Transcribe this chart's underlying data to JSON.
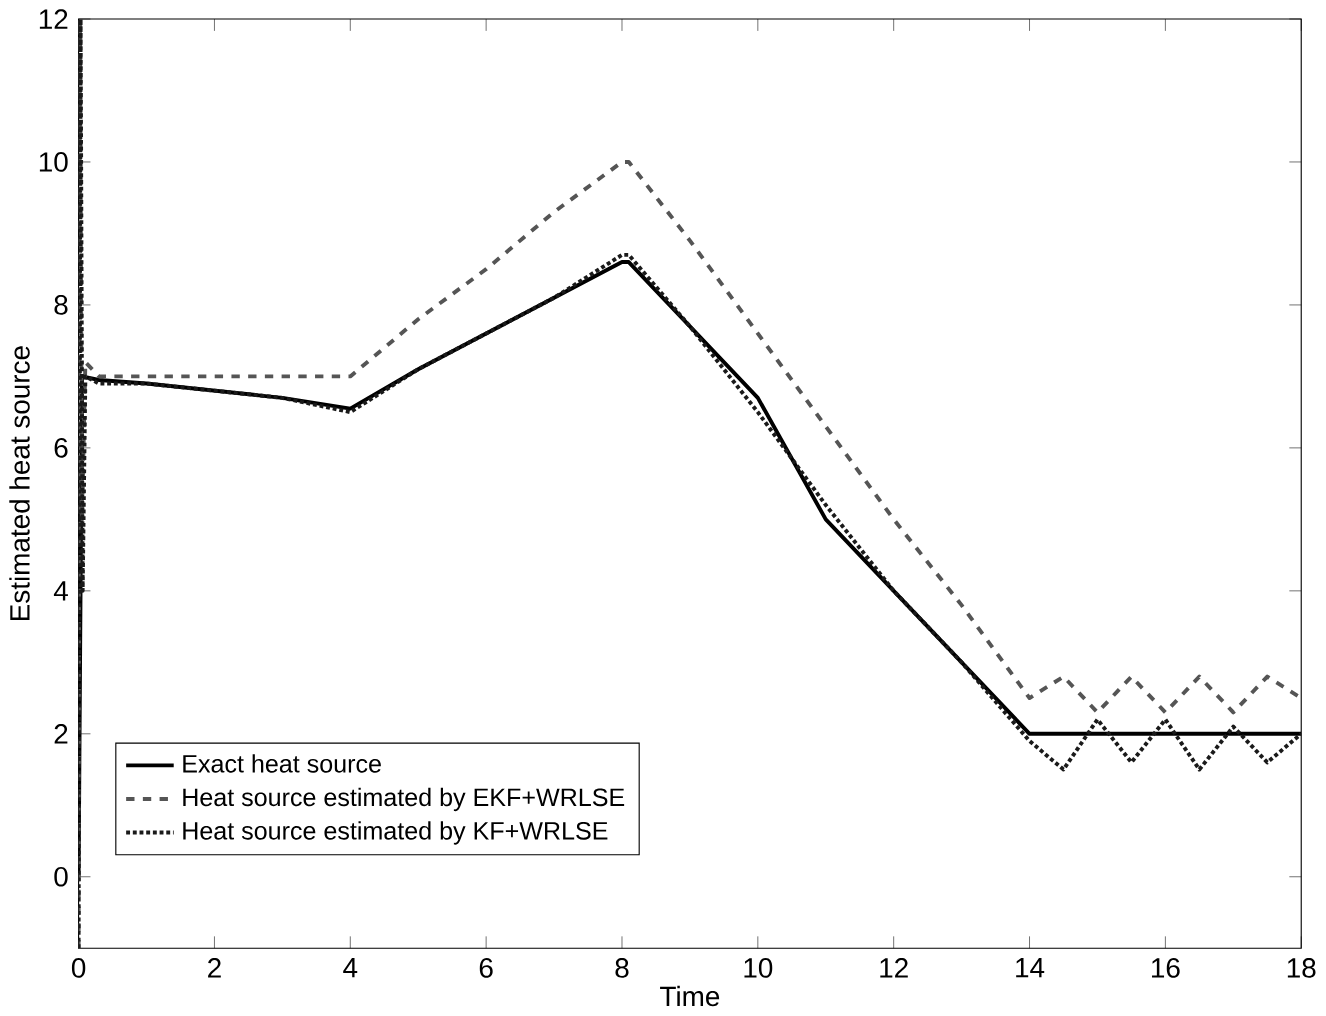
{
  "chart_data": {
    "type": "line",
    "xlabel": "Time",
    "ylabel": "Estimated heat source",
    "xlim": [
      0,
      18
    ],
    "ylim": [
      -1,
      12
    ],
    "xticks": [
      0,
      2,
      4,
      6,
      8,
      10,
      12,
      14,
      16,
      18
    ],
    "yticks": [
      0,
      2,
      4,
      6,
      8,
      10,
      12
    ],
    "grid": false,
    "legend": "bottom left",
    "series": [
      {
        "name": "Exact heat source",
        "color": "#000000",
        "line_style": "solid",
        "x": [
          0,
          0.05,
          0.3,
          1,
          2,
          3,
          4,
          5,
          6,
          7,
          8,
          8.1,
          9,
          10,
          11,
          12,
          13,
          14,
          15,
          16,
          17,
          18
        ],
        "values": [
          0,
          7,
          6.95,
          6.9,
          6.8,
          6.7,
          6.55,
          7.1,
          7.6,
          8.1,
          8.6,
          8.6,
          7.7,
          6.7,
          5.0,
          4.0,
          3.0,
          2.0,
          2.0,
          2.0,
          2.0,
          2.0
        ]
      },
      {
        "name": "Heat source estimated by EKF+WRLSE",
        "color": "#555555",
        "line_style": "dashed",
        "x": [
          0,
          0.02,
          0.05,
          0.1,
          0.3,
          1,
          2,
          3,
          4,
          5,
          6,
          7,
          8,
          8.1,
          9,
          10,
          11,
          12,
          13,
          14,
          14.5,
          15,
          15.5,
          16,
          16.5,
          17,
          17.5,
          18
        ],
        "values": [
          -1,
          12,
          5,
          7.2,
          7,
          7,
          7,
          7,
          7,
          7.8,
          8.5,
          9.3,
          10,
          10,
          8.9,
          7.6,
          6.3,
          5.0,
          3.8,
          2.5,
          2.8,
          2.3,
          2.8,
          2.3,
          2.8,
          2.3,
          2.8,
          2.5
        ]
      },
      {
        "name": "Heat source estimated by KF+WRLSE",
        "color": "#1a1a1a",
        "line_style": "dotted",
        "x": [
          0,
          0.03,
          0.06,
          0.1,
          0.3,
          1,
          2,
          3,
          4,
          5,
          6,
          7,
          8,
          8.1,
          9,
          10,
          11,
          12,
          13,
          14,
          14.5,
          15,
          15.5,
          16,
          16.5,
          17,
          17.5,
          18
        ],
        "values": [
          -1,
          12,
          4,
          7,
          6.9,
          6.9,
          6.8,
          6.7,
          6.5,
          7.1,
          7.6,
          8.1,
          8.7,
          8.7,
          7.7,
          6.5,
          5.2,
          4.0,
          3.0,
          1.9,
          1.5,
          2.2,
          1.6,
          2.2,
          1.5,
          2.1,
          1.6,
          2.0
        ]
      }
    ]
  }
}
